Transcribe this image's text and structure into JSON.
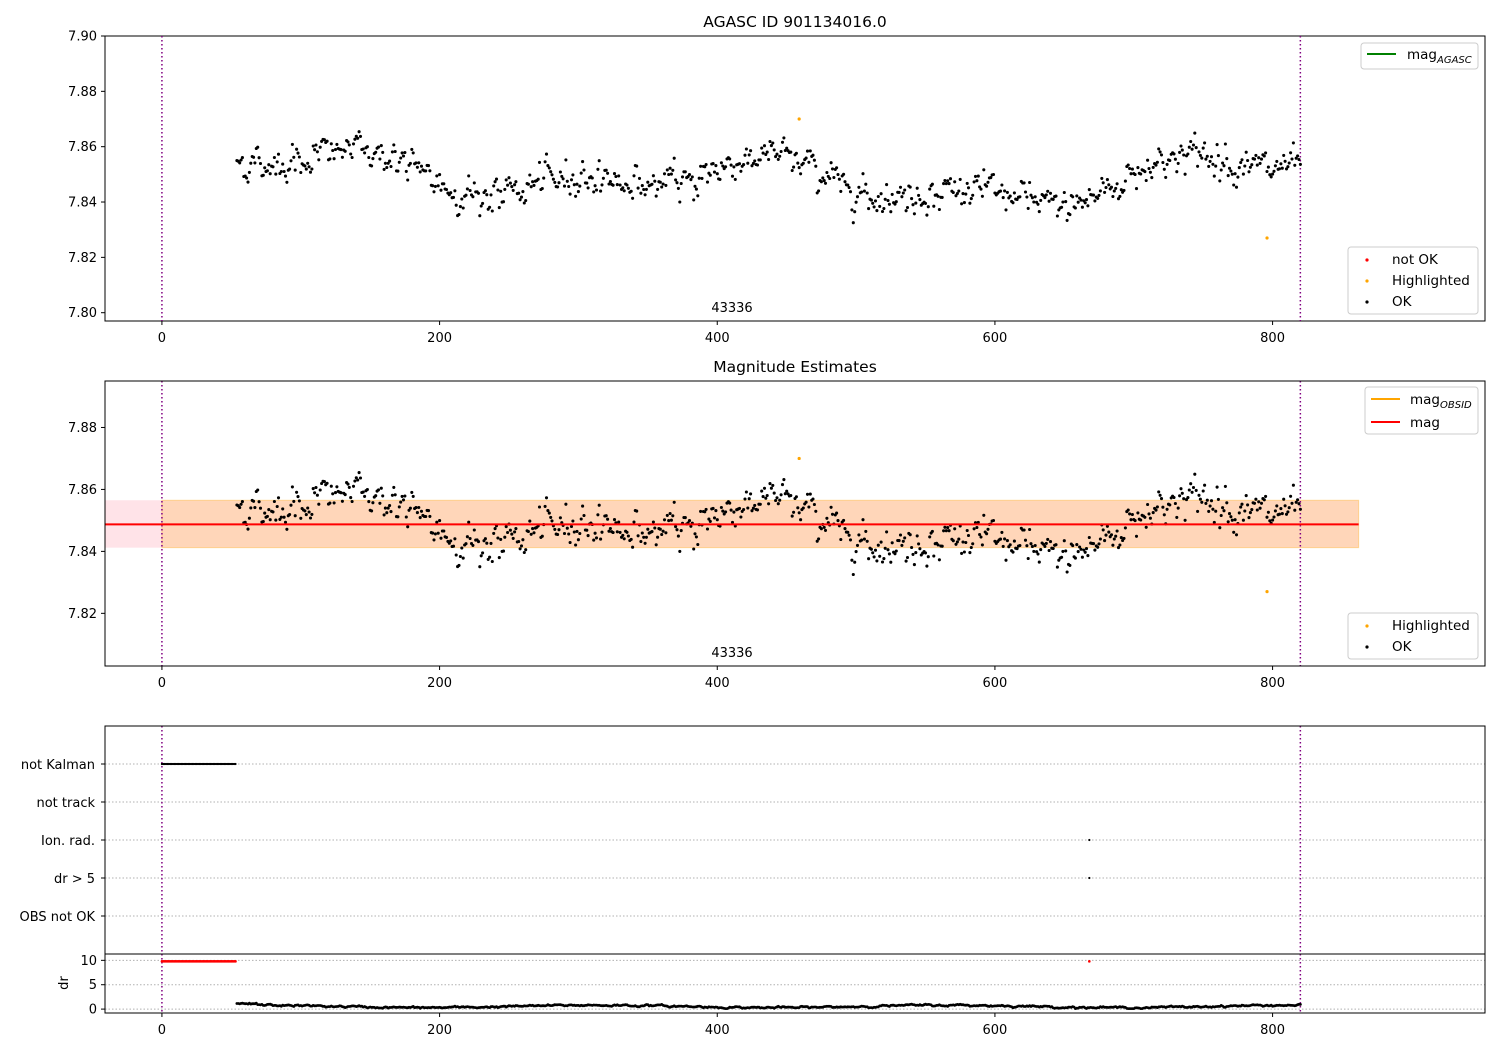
{
  "figure": {
    "vline_color": "#800080",
    "flag_grid_color": "#b0b0b0"
  },
  "chart_data": [
    {
      "type": "scatter",
      "panel": "top",
      "title": "AGASC ID 901134016.0",
      "xlim": [
        -41,
        953
      ],
      "ylim": [
        7.797,
        7.9
      ],
      "xticks": [
        0,
        200,
        400,
        600,
        800
      ],
      "xtick_labels": [
        "0",
        "200",
        "400",
        "600",
        "800"
      ],
      "yticks": [
        7.8,
        7.82,
        7.84,
        7.86,
        7.88,
        7.9
      ],
      "ytick_labels": [
        "7.80",
        "7.82",
        "7.84",
        "7.86",
        "7.88",
        "7.90"
      ],
      "obsid_label": "43336",
      "obsid_boundaries": [
        0,
        820
      ],
      "point_range": {
        "x_start": 54,
        "x_end": 820,
        "step": 1,
        "y_mean": 7.849
      },
      "series_ok": {
        "name": "OK",
        "color": "#000000"
      },
      "series_highlighted": {
        "name": "Highlighted",
        "color": "#ffa500",
        "points": [
          [
            459,
            7.87
          ],
          [
            796,
            7.827
          ]
        ]
      },
      "series_not_ok": {
        "name": "not OK",
        "color": "#ff0000",
        "points": []
      },
      "legend_lines": [
        {
          "label": "mag",
          "subscript": "AGASC",
          "color": "#008000"
        }
      ],
      "legend_points": [
        "not OK",
        "Highlighted",
        "OK"
      ],
      "legend_lines_position": "top-right",
      "legend_points_position": "bottom-right",
      "grid": false
    },
    {
      "type": "scatter",
      "panel": "middle",
      "title": "Magnitude Estimates",
      "xlim": [
        -41,
        953
      ],
      "ylim": [
        7.803,
        7.895
      ],
      "xticks": [
        0,
        200,
        400,
        600,
        800
      ],
      "xtick_labels": [
        "0",
        "200",
        "400",
        "600",
        "800"
      ],
      "yticks": [
        7.82,
        7.84,
        7.86,
        7.88
      ],
      "ytick_labels": [
        "7.82",
        "7.84",
        "7.86",
        "7.88"
      ],
      "obsid_label": "43336",
      "obsid_boundaries": [
        0,
        820
      ],
      "mag_line": {
        "value": 7.8487,
        "x_range": [
          -41,
          862
        ],
        "color": "#ff0000"
      },
      "mag_band": {
        "low": 7.8412,
        "high": 7.8565,
        "x_range": [
          -41,
          862
        ],
        "color": "#ffc0cb"
      },
      "mag_obsid_band": {
        "low": 7.8412,
        "high": 7.8565,
        "x_range": [
          0,
          862
        ],
        "color": "#ffa500"
      },
      "series_ok": {
        "name": "OK",
        "color": "#000000"
      },
      "series_highlighted": {
        "name": "Highlighted",
        "color": "#ffa500",
        "points": [
          [
            459,
            7.87
          ],
          [
            796,
            7.827
          ]
        ]
      },
      "legend_lines": [
        {
          "label": "mag",
          "subscript": "OBSID",
          "color": "#ffa500"
        },
        {
          "label": "mag",
          "subscript": "",
          "color": "#ff0000"
        }
      ],
      "legend_points": [
        "Highlighted",
        "OK"
      ],
      "legend_lines_position": "top-right",
      "legend_points_position": "bottom-right",
      "grid": false
    },
    {
      "type": "scatter",
      "panel": "flags",
      "xlim": [
        -41,
        953
      ],
      "flag_labels": [
        "not Kalman",
        "not track",
        "Ion. rad.",
        "dr > 5",
        "OBS not OK"
      ],
      "flag_points": {
        "not Kalman": {
          "x_start": 0,
          "x_end": 53,
          "step": 1
        },
        "not track": null,
        "Ion. rad.": {
          "x": [
            668
          ]
        },
        "dr > 5": {
          "x": [
            668
          ]
        },
        "OBS not OK": null
      },
      "grid": true
    },
    {
      "type": "scatter",
      "panel": "dr",
      "ylabel": "dr",
      "xlim": [
        -41,
        953
      ],
      "ylim": [
        -0.8,
        11.3
      ],
      "xticks": [
        0,
        200,
        400,
        600,
        800
      ],
      "xtick_labels": [
        "0",
        "200",
        "400",
        "600",
        "800"
      ],
      "yticks": [
        0,
        5,
        10
      ],
      "ytick_labels": [
        "0",
        "5",
        "10"
      ],
      "clipped_value": 9.8,
      "clipped_color": "#ff0000",
      "clipped_points": {
        "x_start": 0,
        "x_end": 53,
        "step": 1,
        "extra_x": [
          668
        ]
      },
      "dr_points": {
        "x_start": 54,
        "x_end": 820,
        "step": 1,
        "y_range": [
          0.1,
          1.2
        ]
      },
      "grid": true
    }
  ]
}
